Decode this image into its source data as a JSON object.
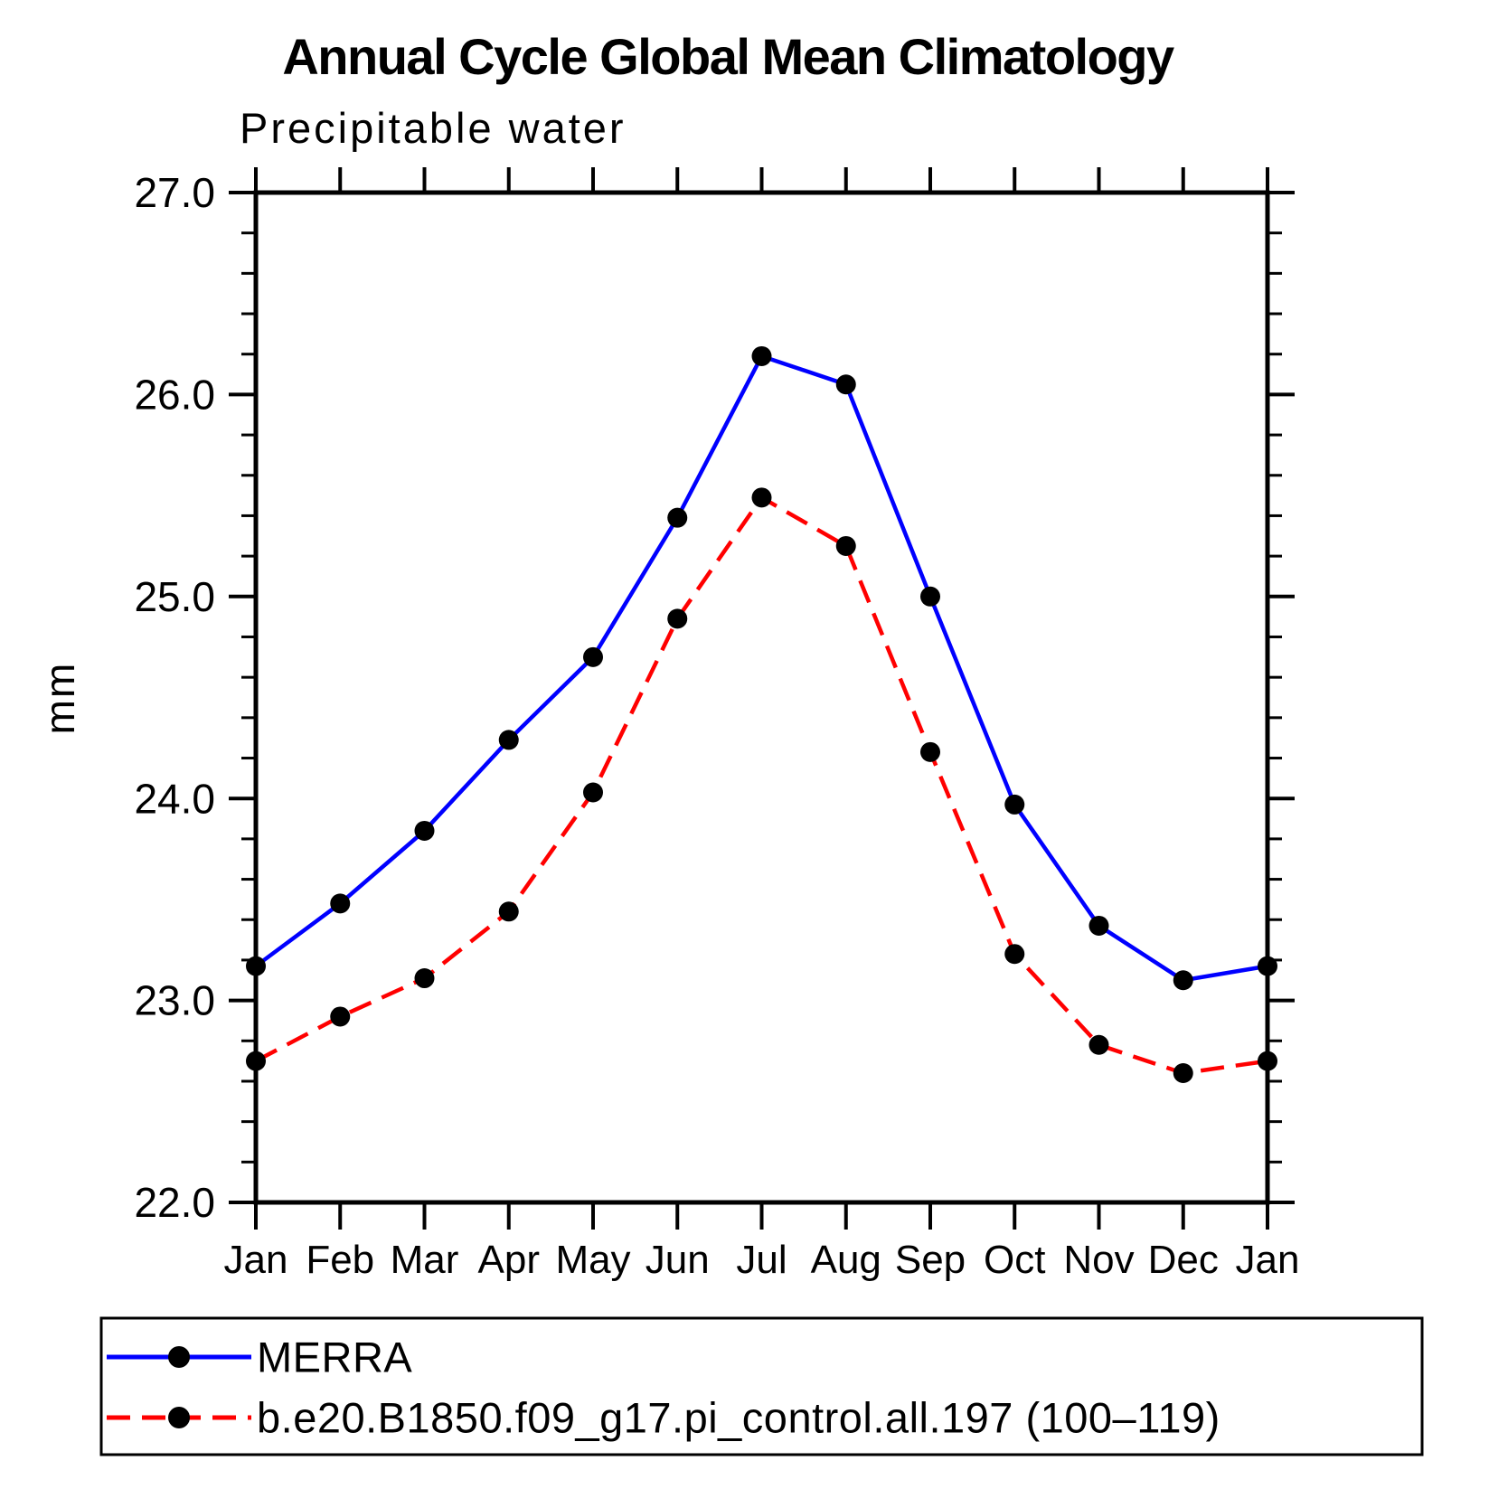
{
  "chart_data": {
    "type": "line",
    "title": "Annual Cycle Global Mean Climatology",
    "subtitle": "Precipitable water",
    "ylabel": "mm",
    "xlabel": "",
    "ylim": [
      22.0,
      27.0
    ],
    "ytick_values": [
      22,
      23,
      24,
      25,
      26,
      27
    ],
    "ytick_labels": [
      "22.0",
      "23.0",
      "24.0",
      "25.0",
      "26.0",
      "27.0"
    ],
    "y_minor_step": 0.2,
    "grid": false,
    "legend_position": "bottom",
    "categories": [
      "Jan",
      "Feb",
      "Mar",
      "Apr",
      "May",
      "Jun",
      "Jul",
      "Aug",
      "Sep",
      "Oct",
      "Nov",
      "Dec",
      "Jan"
    ],
    "series": [
      {
        "name": "MERRA",
        "color": "#0000ff",
        "line_style": "solid",
        "marker": "filled-circle",
        "marker_color": "#000000",
        "values": [
          23.17,
          23.48,
          23.84,
          24.29,
          24.7,
          25.39,
          26.19,
          26.05,
          25.0,
          23.97,
          23.37,
          23.1,
          23.17
        ]
      },
      {
        "name": "b.e20.B1850.f09_g17.pi_control.all.197 (100–119)",
        "color": "#ff0000",
        "line_style": "dashed",
        "marker": "filled-circle",
        "marker_color": "#000000",
        "values": [
          22.7,
          22.92,
          23.11,
          23.44,
          24.03,
          24.89,
          25.49,
          25.25,
          24.23,
          23.23,
          22.78,
          22.64,
          22.7
        ]
      }
    ]
  }
}
